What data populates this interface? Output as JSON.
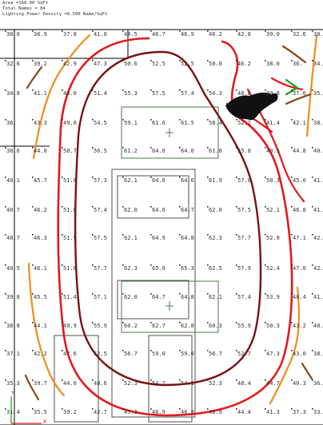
{
  "header": {
    "area": "Area =168.00 SqFt",
    "total_names": "Total Names = 84",
    "lighting_power_density": "Lighting Power Density =0.500 Name/SqFt"
  },
  "grid": {
    "cols": [
      8,
      42,
      79,
      117,
      155,
      190,
      226,
      261,
      297,
      333,
      366,
      392
    ],
    "rows": [
      45,
      82,
      119,
      156,
      191,
      228,
      265,
      300,
      338,
      374,
      410,
      445,
      482,
      518
    ],
    "values": [
      [
        "30.0",
        "36.9",
        "37.8",
        "41.0",
        "44.5",
        "46.7",
        "46.9",
        "46.2",
        "42.8",
        "39.0",
        "32.6",
        "30."
      ],
      [
        "32.6",
        "39.2",
        "42.9",
        "47.3",
        "50.6",
        "52.5",
        "52.5",
        "50.0",
        "46.2",
        "38.0",
        "36.",
        "34."
      ],
      [
        "34.0",
        "41.1",
        "46.0",
        "51.4",
        "55.3",
        "57.5",
        "57.4",
        "54.3",
        "48.6",
        "39.8",
        "37.6",
        "35."
      ],
      [
        "36.",
        "43.3",
        "49.0",
        "54.5",
        "59.1",
        "61.6",
        "61.5",
        "58.4",
        "52.1",
        "41.4",
        "42.1",
        "38."
      ],
      [
        "38.6",
        "44.8",
        "50.7",
        "56.5",
        "61.2",
        "64.0",
        "64.0",
        "61.0",
        "55.8",
        "49.5",
        "44.8",
        "40."
      ],
      [
        "40.1",
        "45.7",
        "51.6",
        "57.3",
        "62.1",
        "64.6",
        "64.6",
        "61.9",
        "57.0",
        "50.3",
        "45.0",
        "41."
      ],
      [
        "40.7",
        "46.2",
        "51.8",
        "57.4",
        "62.0",
        "64.6",
        "64.7",
        "62.0",
        "57.5",
        "52.1",
        "46.8",
        "41."
      ],
      [
        "40.7",
        "46.3",
        "51.9",
        "57.5",
        "62.1",
        "64.9",
        "64.8",
        "62.3",
        "57.7",
        "52.0",
        "47.1",
        "42."
      ],
      [
        "40.5",
        "46.1",
        "51.8",
        "57.7",
        "62.3",
        "65.0",
        "65.3",
        "62.5",
        "57.9",
        "52.4",
        "47.0",
        "42."
      ],
      [
        "39.8",
        "45.5",
        "51.4",
        "57.1",
        "62.0",
        "64.7",
        "64.8",
        "62.1",
        "57.4",
        "53.9",
        "46.4",
        "41."
      ],
      [
        "38.8",
        "44.1",
        "49.9",
        "55.9",
        "60.2",
        "62.7",
        "62.8",
        "60.3",
        "55.9",
        "50.3",
        "43.2",
        "40."
      ],
      [
        "37.1",
        "42.2",
        "47.6",
        "52.5",
        "56.7",
        "59.0",
        "59.0",
        "56.7",
        "52.7",
        "47.3",
        "43.0",
        "38."
      ],
      [
        "35.3",
        "39.7",
        "44.0",
        "48.6",
        "52.3",
        "54.2",
        "54.1",
        "52.3",
        "48.4",
        "44.7",
        "40.3",
        "36."
      ],
      [
        "31.4",
        "35.5",
        "39.2",
        "42.7",
        "45.3",
        "46.9",
        "46.8",
        "46.9",
        "44.4",
        "41.3",
        "37.3",
        "33."
      ]
    ]
  },
  "colors": {
    "contour_outer": "#e31a1c",
    "contour_inner": "#7a1010",
    "contour_orange": "#f08c1e",
    "contour_brown": "#8b4513",
    "contour_green": "#1a9c1a",
    "fixture_green": "#4a7a4a",
    "furniture": "#404040",
    "walls": "#000000",
    "axis_x": "#e31a1c",
    "axis_y": "#1a9c1a"
  }
}
